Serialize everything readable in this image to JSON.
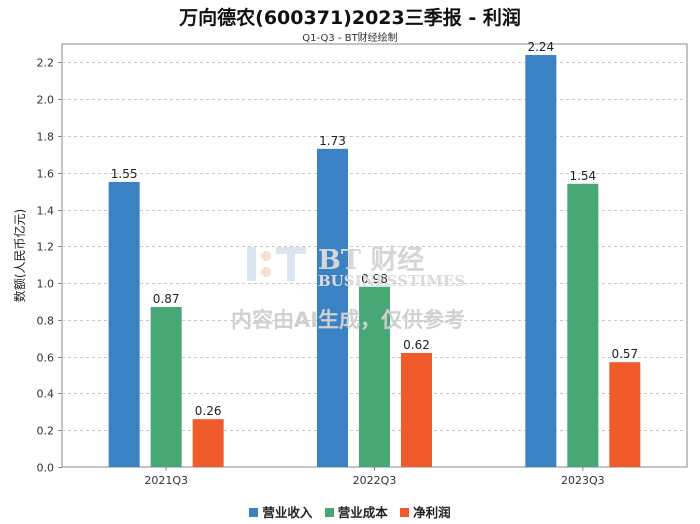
{
  "chart_data": {
    "type": "bar",
    "title": "万向德农(600371)2023三季报 - 利润",
    "subtitle": "Q1-Q3 - BT财经绘制",
    "xlabel": "",
    "ylabel": "数额(人民币亿元)",
    "categories": [
      "2021Q3",
      "2022Q3",
      "2023Q3"
    ],
    "series": [
      {
        "name": "营业收入",
        "values": [
          1.55,
          1.73,
          2.24
        ],
        "labels": [
          "1.55",
          "1.73",
          "2.24"
        ],
        "color": "#3a82c4"
      },
      {
        "name": "营业成本",
        "values": [
          0.87,
          0.98,
          1.54
        ],
        "labels": [
          "0.87",
          "0.98",
          "1.54"
        ],
        "color": "#47a876"
      },
      {
        "name": "净利润",
        "values": [
          0.26,
          0.62,
          0.57
        ],
        "labels": [
          "0.26",
          "0.62",
          "0.57"
        ],
        "color": "#f15a2b"
      }
    ],
    "ylim": [
      0,
      2.3
    ],
    "yticks": [
      0.0,
      0.2,
      0.4,
      0.6,
      0.8,
      1.0,
      1.2,
      1.4,
      1.6,
      1.8,
      2.0,
      2.2
    ],
    "ytick_labels": [
      "0.0",
      "0.2",
      "0.4",
      "0.6",
      "0.8",
      "1.0",
      "1.2",
      "1.4",
      "1.6",
      "1.8",
      "2.0",
      "2.2"
    ],
    "grid": true,
    "legend": "bottom-center"
  },
  "watermark": {
    "brand_cn": "BT 财经",
    "brand_en": "BUSINESSTIMES",
    "notice": "内容由AI生成，仅供参考"
  },
  "colors": {
    "grid": "#c8c8c8",
    "axis": "#888888",
    "watermark": "#cfcfcf"
  }
}
